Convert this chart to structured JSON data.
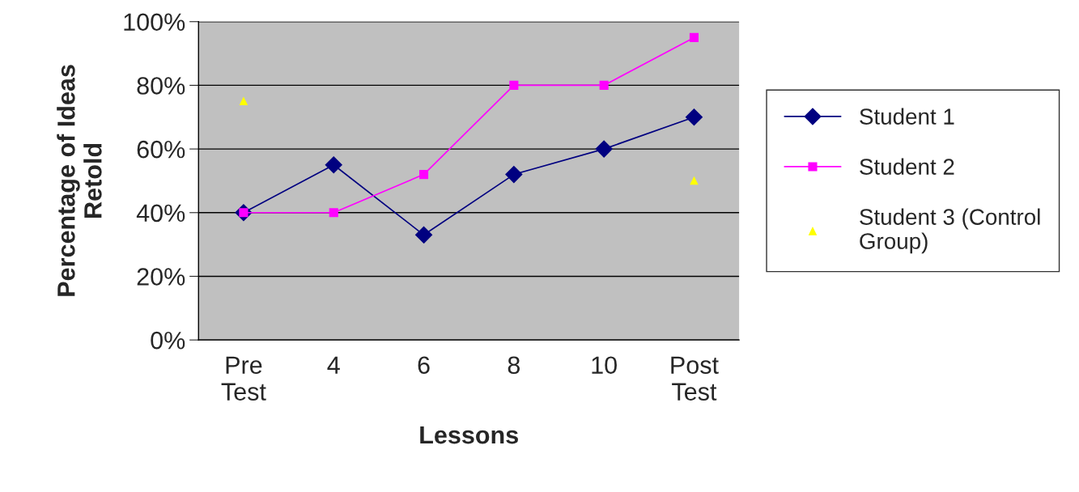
{
  "chart_data": {
    "type": "line",
    "xlabel": "Lessons",
    "ylabel": "Percentage of Ideas\nRetold",
    "categories": [
      "Pre\nTest",
      "4",
      "6",
      "8",
      "10",
      "Post\nTest"
    ],
    "series": [
      {
        "name": "Student 1",
        "color": "#000080",
        "marker": "diamond",
        "values": [
          40,
          55,
          33,
          52,
          60,
          70
        ]
      },
      {
        "name": "Student 2",
        "color": "#ff00ff",
        "marker": "square",
        "values": [
          40,
          40,
          52,
          80,
          80,
          95
        ]
      },
      {
        "name": "Student 3 (Control\nGroup)",
        "type": "scatter",
        "color": "#ffff00",
        "marker": "triangle",
        "values": [
          75,
          null,
          null,
          null,
          null,
          50
        ]
      }
    ],
    "ylim": [
      0,
      100
    ],
    "yticks": [
      {
        "value": 0,
        "label": "0%"
      },
      {
        "value": 20,
        "label": "20%"
      },
      {
        "value": 40,
        "label": "40%"
      },
      {
        "value": 60,
        "label": "60%"
      },
      {
        "value": 80,
        "label": "80%"
      },
      {
        "value": 100,
        "label": "100%"
      }
    ],
    "grid": "y",
    "legend": "right",
    "line_style": "solid"
  }
}
